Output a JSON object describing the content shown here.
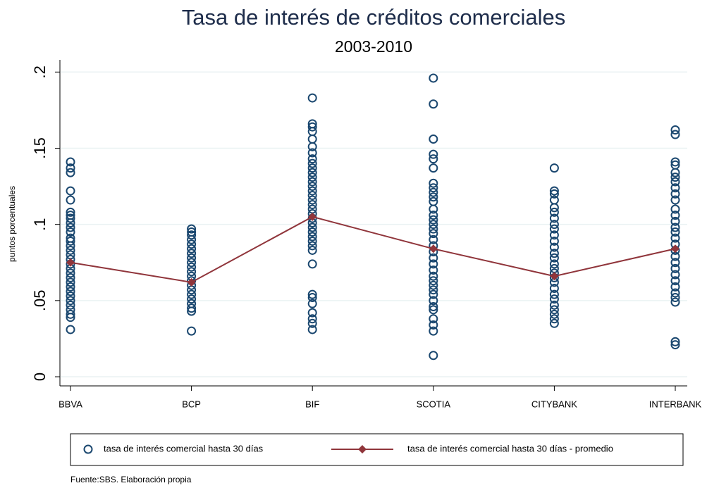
{
  "chart_data": {
    "type": "scatter",
    "title": "Tasa de interés de créditos comerciales",
    "subtitle": "2003-2010",
    "y_label": "puntos porcentuales",
    "note": "Fuente:SBS. Elaboración propia",
    "categories": [
      "BBVA",
      "BCP",
      "BIF",
      "SCOTIA",
      "CITYBANK",
      "INTERBANK"
    ],
    "ylim": [
      -0.006,
      0.208
    ],
    "yticks": [
      0,
      {
        "value": 0.05,
        "label": ".05"
      },
      {
        "value": 0.1,
        "label": ".1"
      },
      {
        "value": 0.15,
        "label": ".15"
      },
      {
        "value": 0.2,
        "label": ".2"
      }
    ],
    "grid": true,
    "legend": "bottom",
    "series": [
      {
        "name": "tasa de interés comercial hasta 30 días",
        "type": "scatter",
        "color": "#1a476f",
        "values": [
          [
            0.141,
            0.137,
            0.134,
            0.122,
            0.116,
            0.108,
            0.106,
            0.104,
            0.101,
            0.098,
            0.095,
            0.091,
            0.089,
            0.086,
            0.083,
            0.08,
            0.077,
            0.074,
            0.071,
            0.068,
            0.065,
            0.062,
            0.059,
            0.056,
            0.053,
            0.05,
            0.047,
            0.044,
            0.041,
            0.039,
            0.031
          ],
          [
            0.097,
            0.095,
            0.093,
            0.09,
            0.087,
            0.084,
            0.081,
            0.078,
            0.075,
            0.072,
            0.069,
            0.066,
            0.063,
            0.06,
            0.057,
            0.054,
            0.051,
            0.048,
            0.045,
            0.043,
            0.03
          ],
          [
            0.183,
            0.166,
            0.164,
            0.161,
            0.156,
            0.151,
            0.147,
            0.143,
            0.14,
            0.137,
            0.134,
            0.131,
            0.128,
            0.125,
            0.122,
            0.119,
            0.116,
            0.113,
            0.11,
            0.107,
            0.104,
            0.101,
            0.098,
            0.095,
            0.092,
            0.089,
            0.086,
            0.083,
            0.074,
            0.054,
            0.052,
            0.048,
            0.042,
            0.038,
            0.035,
            0.031
          ],
          [
            0.196,
            0.179,
            0.156,
            0.146,
            0.143,
            0.137,
            0.127,
            0.124,
            0.121,
            0.118,
            0.115,
            0.11,
            0.106,
            0.103,
            0.1,
            0.097,
            0.094,
            0.09,
            0.086,
            0.082,
            0.078,
            0.074,
            0.07,
            0.066,
            0.063,
            0.06,
            0.057,
            0.054,
            0.05,
            0.046,
            0.044,
            0.038,
            0.034,
            0.03,
            0.014
          ],
          [
            0.137,
            0.122,
            0.12,
            0.116,
            0.111,
            0.108,
            0.104,
            0.1,
            0.097,
            0.093,
            0.089,
            0.085,
            0.081,
            0.078,
            0.074,
            0.071,
            0.068,
            0.065,
            0.062,
            0.058,
            0.054,
            0.051,
            0.047,
            0.044,
            0.041,
            0.038,
            0.035
          ],
          [
            0.162,
            0.159,
            0.141,
            0.139,
            0.134,
            0.131,
            0.128,
            0.124,
            0.12,
            0.116,
            0.11,
            0.106,
            0.102,
            0.098,
            0.095,
            0.091,
            0.087,
            0.083,
            0.079,
            0.075,
            0.071,
            0.067,
            0.063,
            0.059,
            0.055,
            0.052,
            0.049,
            0.023,
            0.021
          ]
        ]
      },
      {
        "name": "tasa de interés comercial hasta 30 días - promedio",
        "type": "line",
        "color": "#90353b",
        "values": [
          0.075,
          0.062,
          0.105,
          0.084,
          0.066,
          0.084
        ]
      }
    ]
  }
}
